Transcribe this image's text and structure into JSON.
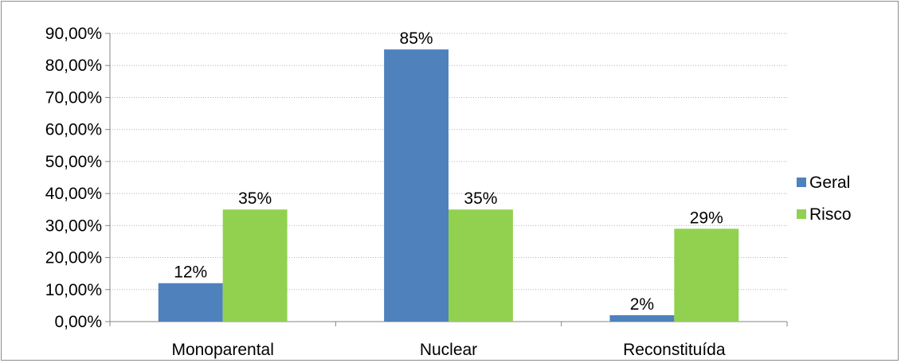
{
  "chart_data": {
    "type": "bar",
    "categories": [
      "Monoparental",
      "Nuclear",
      "Reconstituída"
    ],
    "series": [
      {
        "name": "Geral",
        "values": [
          12,
          85,
          2
        ],
        "labels": [
          "12%",
          "85%",
          "2%"
        ],
        "color": "#4f81bd"
      },
      {
        "name": "Risco",
        "values": [
          35,
          35,
          29
        ],
        "labels": [
          "35%",
          "35%",
          "29%"
        ],
        "color": "#92d050"
      }
    ],
    "y_ticks": [
      "0,00%",
      "10,00%",
      "20,00%",
      "30,00%",
      "40,00%",
      "50,00%",
      "60,00%",
      "70,00%",
      "80,00%",
      "90,00%"
    ],
    "ylim": [
      0,
      90
    ],
    "grid": true,
    "legend_position": "right",
    "title": "",
    "xlabel": "",
    "ylabel": ""
  }
}
